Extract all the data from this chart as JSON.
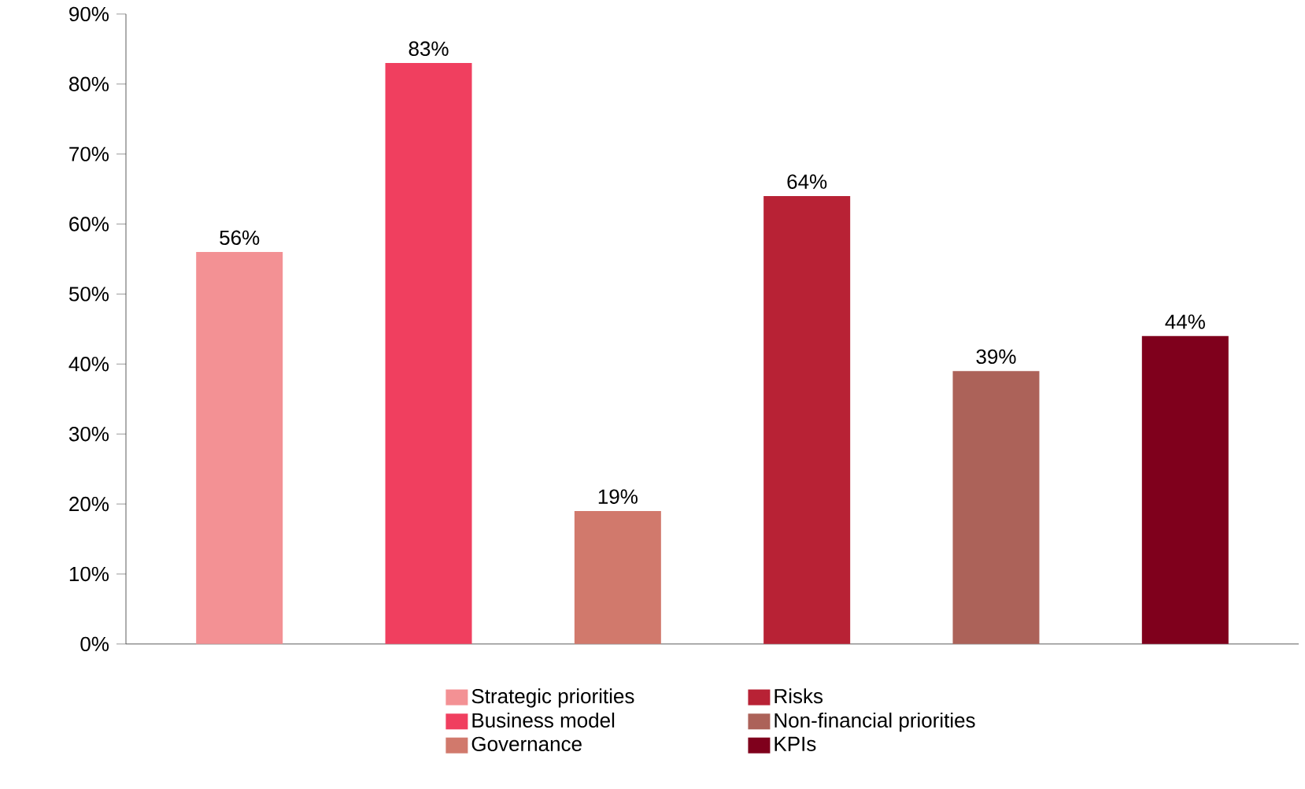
{
  "chart_data": {
    "type": "bar",
    "categories": [
      null,
      null,
      null,
      null,
      null,
      null
    ],
    "series": [
      {
        "name": "Strategic priorities",
        "color": "#f39194",
        "values": [
          56,
          null,
          null,
          null,
          null,
          null
        ],
        "value_labels": [
          "56%",
          null,
          null,
          null,
          null,
          null
        ]
      },
      {
        "name": "Business model",
        "color": "#f03f5f",
        "values": [
          null,
          83,
          null,
          null,
          null,
          null
        ],
        "value_labels": [
          null,
          "83%",
          null,
          null,
          null,
          null
        ]
      },
      {
        "name": "Governance",
        "color": "#d1796c",
        "values": [
          null,
          null,
          19,
          null,
          null,
          null
        ],
        "value_labels": [
          null,
          null,
          "19%",
          null,
          null,
          null
        ]
      },
      {
        "name": "Risks",
        "color": "#b82235",
        "values": [
          null,
          null,
          null,
          64,
          null,
          null
        ],
        "value_labels": [
          null,
          null,
          null,
          "64%",
          null,
          null
        ]
      },
      {
        "name": "Non-financial priorities",
        "color": "#ac6259",
        "values": [
          null,
          null,
          null,
          null,
          39,
          null
        ],
        "value_labels": [
          null,
          null,
          null,
          null,
          "39%",
          null
        ]
      },
      {
        "name": "KPIs",
        "color": "#7f001c",
        "values": [
          null,
          null,
          null,
          null,
          null,
          44
        ],
        "value_labels": [
          null,
          null,
          null,
          null,
          null,
          "44%"
        ]
      }
    ],
    "ylim": [
      0,
      90
    ],
    "yticks": [
      {
        "value": 0,
        "label": "0%"
      },
      {
        "value": 10,
        "label": "10%"
      },
      {
        "value": 20,
        "label": "20%"
      },
      {
        "value": 30,
        "label": "30%"
      },
      {
        "value": 40,
        "label": "40%"
      },
      {
        "value": 50,
        "label": "50%"
      },
      {
        "value": 60,
        "label": "60%"
      },
      {
        "value": 70,
        "label": "70%"
      },
      {
        "value": 80,
        "label": "80%"
      },
      {
        "value": 90,
        "label": "90%"
      }
    ],
    "legend": "bottom",
    "grid": false,
    "tick_labels": "y"
  }
}
